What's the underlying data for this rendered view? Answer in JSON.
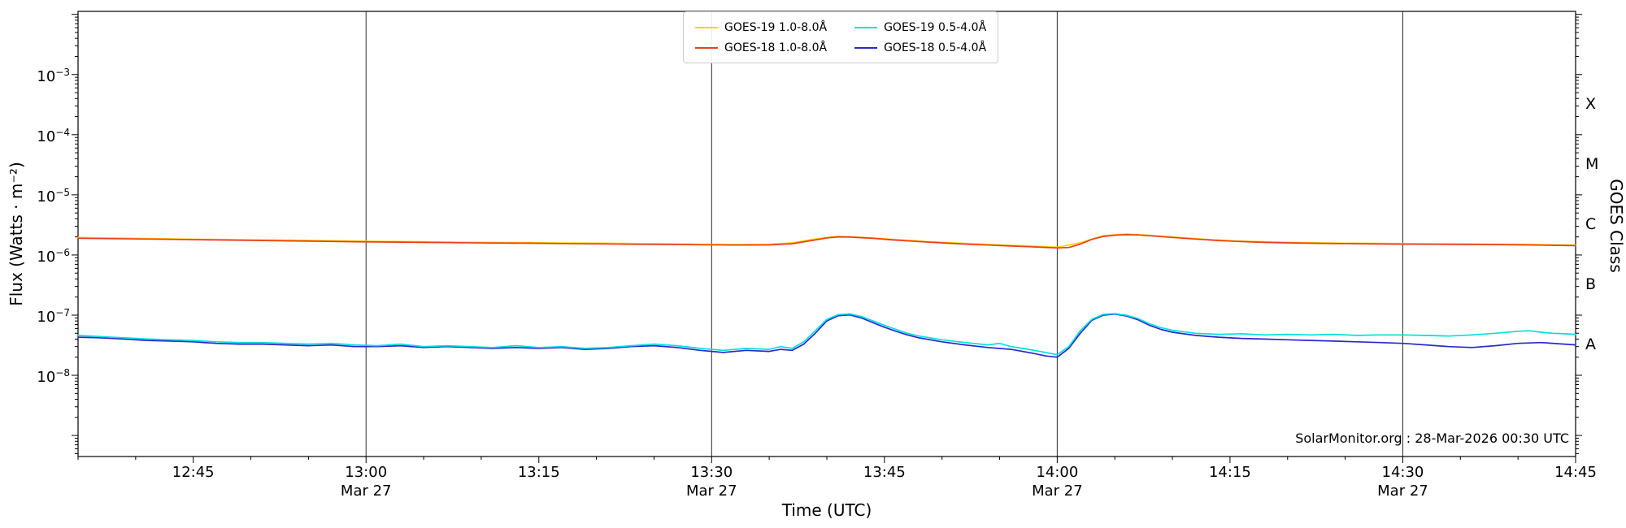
{
  "chart_data": {
    "type": "line",
    "title": "",
    "xlabel": "Time (UTC)",
    "ylabel": "Flux (Watts · m⁻²)",
    "ylabel_right": "GOES Class",
    "watermark": "SolarMonitor.org : 28-Mar-2026 00:30 UTC",
    "x_unit": "minutes after 12:00 UTC on 27-Mar-2026",
    "xlim": [
      35,
      165
    ],
    "ylim_log10": [
      -9.35,
      -1.95
    ],
    "grid": "vertical-only",
    "legend_position": "top-center",
    "xticks": [
      {
        "t": 45,
        "label": "12:45",
        "sub": ""
      },
      {
        "t": 60,
        "label": "13:00",
        "sub": "Mar 27"
      },
      {
        "t": 75,
        "label": "13:15",
        "sub": ""
      },
      {
        "t": 90,
        "label": "13:30",
        "sub": "Mar 27"
      },
      {
        "t": 105,
        "label": "13:45",
        "sub": ""
      },
      {
        "t": 120,
        "label": "14:00",
        "sub": "Mar 27"
      },
      {
        "t": 135,
        "label": "14:15",
        "sub": ""
      },
      {
        "t": 150,
        "label": "14:30",
        "sub": "Mar 27"
      },
      {
        "t": 165,
        "label": "14:45",
        "sub": ""
      }
    ],
    "gridlines_t": [
      60,
      90,
      120,
      150
    ],
    "yticks_log10": [
      -3,
      -4,
      -5,
      -6,
      -7,
      -8
    ],
    "goes_classes": [
      {
        "label": "X",
        "log10": -3.5
      },
      {
        "label": "M",
        "log10": -4.5
      },
      {
        "label": "C",
        "log10": -5.5
      },
      {
        "label": "B",
        "log10": -6.5
      },
      {
        "label": "A",
        "log10": -7.5
      }
    ],
    "legend": [
      {
        "label": "GOES-19 1.0-8.0Å",
        "color": "#ffd200"
      },
      {
        "label": "GOES-18 1.0-8.0Å",
        "color": "#e8401a"
      },
      {
        "label": "GOES-19 0.5-4.0Å",
        "color": "#00e0e0"
      },
      {
        "label": "GOES-18 0.5-4.0Å",
        "color": "#2929cc"
      }
    ],
    "series": [
      {
        "name": "GOES-19 1.0-8.0Å",
        "color": "#ffd200",
        "points": [
          [
            35,
            1.95e-06
          ],
          [
            40,
            1.89e-06
          ],
          [
            45,
            1.83e-06
          ],
          [
            50,
            1.79e-06
          ],
          [
            55,
            1.75e-06
          ],
          [
            60,
            1.69e-06
          ],
          [
            65,
            1.66e-06
          ],
          [
            70,
            1.62e-06
          ],
          [
            75,
            1.6e-06
          ],
          [
            80,
            1.57e-06
          ],
          [
            85,
            1.54e-06
          ],
          [
            90,
            1.5e-06
          ],
          [
            95,
            1.51e-06
          ],
          [
            97,
            1.59e-06
          ],
          [
            99,
            1.85e-06
          ],
          [
            101,
            2.05e-06
          ],
          [
            103,
            1.97e-06
          ],
          [
            106,
            1.81e-06
          ],
          [
            109,
            1.66e-06
          ],
          [
            112,
            1.56e-06
          ],
          [
            115,
            1.47e-06
          ],
          [
            118,
            1.4e-06
          ],
          [
            120,
            1.35e-06
          ],
          [
            122,
            1.6e-06
          ],
          [
            124,
            2.1e-06
          ],
          [
            126,
            2.23e-06
          ],
          [
            128,
            2.13e-06
          ],
          [
            130,
            2e-06
          ],
          [
            133,
            1.82e-06
          ],
          [
            136,
            1.7e-06
          ],
          [
            139,
            1.64e-06
          ],
          [
            142,
            1.6e-06
          ],
          [
            145,
            1.57e-06
          ],
          [
            148,
            1.56e-06
          ],
          [
            151,
            1.55e-06
          ],
          [
            154,
            1.54e-06
          ],
          [
            157,
            1.52e-06
          ],
          [
            160,
            1.5e-06
          ],
          [
            163,
            1.48e-06
          ],
          [
            165,
            1.46e-06
          ]
        ]
      },
      {
        "name": "GOES-18 1.0-8.0Å",
        "color": "#e8401a",
        "points": [
          [
            35,
            1.9e-06
          ],
          [
            38,
            1.87e-06
          ],
          [
            41,
            1.84e-06
          ],
          [
            44,
            1.81e-06
          ],
          [
            47,
            1.78e-06
          ],
          [
            50,
            1.75e-06
          ],
          [
            53,
            1.72e-06
          ],
          [
            56,
            1.69e-06
          ],
          [
            59,
            1.66e-06
          ],
          [
            62,
            1.64e-06
          ],
          [
            65,
            1.62e-06
          ],
          [
            68,
            1.6e-06
          ],
          [
            71,
            1.58e-06
          ],
          [
            74,
            1.57e-06
          ],
          [
            77,
            1.55e-06
          ],
          [
            80,
            1.53e-06
          ],
          [
            83,
            1.51e-06
          ],
          [
            86,
            1.5e-06
          ],
          [
            89,
            1.48e-06
          ],
          [
            92,
            1.46e-06
          ],
          [
            95,
            1.47e-06
          ],
          [
            97,
            1.54e-06
          ],
          [
            99,
            1.78e-06
          ],
          [
            100,
            1.92e-06
          ],
          [
            101,
            2e-06
          ],
          [
            102,
            1.98e-06
          ],
          [
            104,
            1.89e-06
          ],
          [
            106,
            1.77e-06
          ],
          [
            108,
            1.67e-06
          ],
          [
            110,
            1.59e-06
          ],
          [
            112,
            1.52e-06
          ],
          [
            114,
            1.46e-06
          ],
          [
            116,
            1.41e-06
          ],
          [
            118,
            1.36e-06
          ],
          [
            120,
            1.31e-06
          ],
          [
            121,
            1.33e-06
          ],
          [
            122,
            1.52e-06
          ],
          [
            123,
            1.82e-06
          ],
          [
            124,
            2.03e-06
          ],
          [
            125,
            2.14e-06
          ],
          [
            126,
            2.18e-06
          ],
          [
            127,
            2.16e-06
          ],
          [
            128,
            2.09e-06
          ],
          [
            130,
            1.96e-06
          ],
          [
            132,
            1.84e-06
          ],
          [
            134,
            1.74e-06
          ],
          [
            136,
            1.67e-06
          ],
          [
            138,
            1.62e-06
          ],
          [
            140,
            1.59e-06
          ],
          [
            143,
            1.56e-06
          ],
          [
            146,
            1.54e-06
          ],
          [
            149,
            1.52e-06
          ],
          [
            152,
            1.51e-06
          ],
          [
            155,
            1.5e-06
          ],
          [
            158,
            1.49e-06
          ],
          [
            161,
            1.47e-06
          ],
          [
            163,
            1.45e-06
          ],
          [
            165,
            1.43e-06
          ]
        ]
      },
      {
        "name": "GOES-18 0.5-4.0Å",
        "color": "#2929cc",
        "points": [
          [
            35,
            4.3e-08
          ],
          [
            37,
            4.2e-08
          ],
          [
            39,
            4e-08
          ],
          [
            41,
            3.8e-08
          ],
          [
            43,
            3.7e-08
          ],
          [
            45,
            3.6e-08
          ],
          [
            47,
            3.4e-08
          ],
          [
            49,
            3.3e-08
          ],
          [
            51,
            3.3e-08
          ],
          [
            53,
            3.2e-08
          ],
          [
            55,
            3.1e-08
          ],
          [
            57,
            3.2e-08
          ],
          [
            59,
            3e-08
          ],
          [
            61,
            3e-08
          ],
          [
            63,
            3.1e-08
          ],
          [
            65,
            2.9e-08
          ],
          [
            67,
            3e-08
          ],
          [
            69,
            2.9e-08
          ],
          [
            71,
            2.8e-08
          ],
          [
            73,
            2.9e-08
          ],
          [
            75,
            2.8e-08
          ],
          [
            77,
            2.9e-08
          ],
          [
            79,
            2.7e-08
          ],
          [
            81,
            2.8e-08
          ],
          [
            83,
            3e-08
          ],
          [
            85,
            3.1e-08
          ],
          [
            87,
            2.9e-08
          ],
          [
            89,
            2.6e-08
          ],
          [
            91,
            2.4e-08
          ],
          [
            93,
            2.6e-08
          ],
          [
            95,
            2.5e-08
          ],
          [
            96,
            2.7e-08
          ],
          [
            97,
            2.6e-08
          ],
          [
            98,
            3.3e-08
          ],
          [
            99,
            5e-08
          ],
          [
            100,
            8e-08
          ],
          [
            101,
            9.8e-08
          ],
          [
            102,
            1.01e-07
          ],
          [
            103,
            9e-08
          ],
          [
            104,
            7.5e-08
          ],
          [
            105,
            6.3e-08
          ],
          [
            106,
            5.4e-08
          ],
          [
            107,
            4.7e-08
          ],
          [
            108,
            4.2e-08
          ],
          [
            110,
            3.6e-08
          ],
          [
            112,
            3.2e-08
          ],
          [
            114,
            2.9e-08
          ],
          [
            116,
            2.7e-08
          ],
          [
            118,
            2.3e-08
          ],
          [
            119,
            2.1e-08
          ],
          [
            120,
            2e-08
          ],
          [
            121,
            2.8e-08
          ],
          [
            122,
            5e-08
          ],
          [
            123,
            8.2e-08
          ],
          [
            124,
            1e-07
          ],
          [
            125,
            1.04e-07
          ],
          [
            126,
            9.7e-08
          ],
          [
            127,
            8.4e-08
          ],
          [
            128,
            6.8e-08
          ],
          [
            129,
            5.8e-08
          ],
          [
            130,
            5.2e-08
          ],
          [
            132,
            4.6e-08
          ],
          [
            134,
            4.3e-08
          ],
          [
            136,
            4.1e-08
          ],
          [
            138,
            4e-08
          ],
          [
            140,
            3.9e-08
          ],
          [
            142,
            3.8e-08
          ],
          [
            144,
            3.7e-08
          ],
          [
            146,
            3.6e-08
          ],
          [
            148,
            3.5e-08
          ],
          [
            150,
            3.4e-08
          ],
          [
            152,
            3.2e-08
          ],
          [
            154,
            3e-08
          ],
          [
            156,
            2.9e-08
          ],
          [
            158,
            3.1e-08
          ],
          [
            160,
            3.4e-08
          ],
          [
            162,
            3.5e-08
          ],
          [
            164,
            3.3e-08
          ],
          [
            165,
            3.2e-08
          ]
        ]
      },
      {
        "name": "GOES-19 0.5-4.0Å",
        "color": "#00e0e0",
        "points": [
          [
            35,
            4.6e-08
          ],
          [
            37,
            4.4e-08
          ],
          [
            39,
            4.2e-08
          ],
          [
            41,
            4e-08
          ],
          [
            43,
            3.9e-08
          ],
          [
            45,
            3.8e-08
          ],
          [
            47,
            3.6e-08
          ],
          [
            49,
            3.5e-08
          ],
          [
            51,
            3.5e-08
          ],
          [
            53,
            3.4e-08
          ],
          [
            55,
            3.3e-08
          ],
          [
            57,
            3.4e-08
          ],
          [
            59,
            3.2e-08
          ],
          [
            61,
            3.1e-08
          ],
          [
            63,
            3.3e-08
          ],
          [
            65,
            3e-08
          ],
          [
            67,
            3.1e-08
          ],
          [
            69,
            3e-08
          ],
          [
            71,
            2.9e-08
          ],
          [
            73,
            3.1e-08
          ],
          [
            75,
            2.9e-08
          ],
          [
            77,
            3e-08
          ],
          [
            79,
            2.8e-08
          ],
          [
            81,
            2.9e-08
          ],
          [
            83,
            3.1e-08
          ],
          [
            85,
            3.3e-08
          ],
          [
            87,
            3.1e-08
          ],
          [
            89,
            2.8e-08
          ],
          [
            91,
            2.6e-08
          ],
          [
            93,
            2.8e-08
          ],
          [
            95,
            2.7e-08
          ],
          [
            96,
            3e-08
          ],
          [
            97,
            2.8e-08
          ],
          [
            98,
            3.6e-08
          ],
          [
            99,
            5.5e-08
          ],
          [
            100,
            8.5e-08
          ],
          [
            101,
            1.02e-07
          ],
          [
            102,
            1.05e-07
          ],
          [
            103,
            9.5e-08
          ],
          [
            104,
            8e-08
          ],
          [
            105,
            6.8e-08
          ],
          [
            106,
            5.8e-08
          ],
          [
            107,
            5e-08
          ],
          [
            108,
            4.5e-08
          ],
          [
            110,
            3.9e-08
          ],
          [
            112,
            3.5e-08
          ],
          [
            114,
            3.2e-08
          ],
          [
            115,
            3.4e-08
          ],
          [
            116,
            3e-08
          ],
          [
            117,
            2.8e-08
          ],
          [
            118,
            2.6e-08
          ],
          [
            119,
            2.4e-08
          ],
          [
            120,
            2.2e-08
          ],
          [
            121,
            3e-08
          ],
          [
            122,
            5.5e-08
          ],
          [
            123,
            8.5e-08
          ],
          [
            124,
            1.03e-07
          ],
          [
            125,
            1.06e-07
          ],
          [
            126,
            1e-07
          ],
          [
            127,
            8.8e-08
          ],
          [
            128,
            7.2e-08
          ],
          [
            129,
            6.2e-08
          ],
          [
            130,
            5.6e-08
          ],
          [
            132,
            5e-08
          ],
          [
            134,
            4.8e-08
          ],
          [
            136,
            4.9e-08
          ],
          [
            138,
            4.7e-08
          ],
          [
            140,
            4.8e-08
          ],
          [
            142,
            4.7e-08
          ],
          [
            144,
            4.8e-08
          ],
          [
            146,
            4.6e-08
          ],
          [
            148,
            4.7e-08
          ],
          [
            150,
            4.7e-08
          ],
          [
            152,
            4.6e-08
          ],
          [
            154,
            4.5e-08
          ],
          [
            156,
            4.7e-08
          ],
          [
            158,
            5e-08
          ],
          [
            160,
            5.4e-08
          ],
          [
            161,
            5.5e-08
          ],
          [
            162,
            5.2e-08
          ],
          [
            163,
            5e-08
          ],
          [
            164,
            4.9e-08
          ],
          [
            165,
            4.8e-08
          ]
        ]
      }
    ]
  }
}
